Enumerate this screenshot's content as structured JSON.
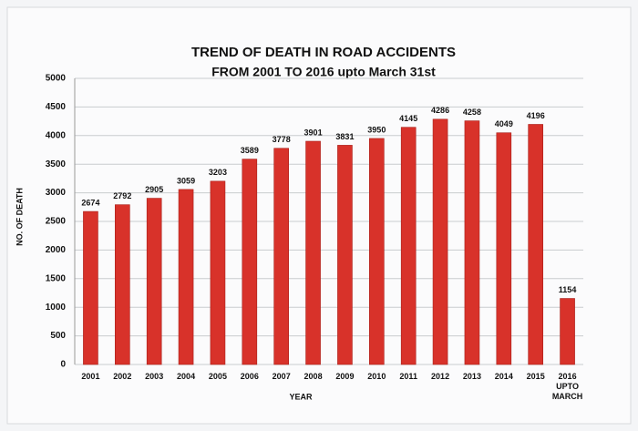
{
  "chart_data": {
    "type": "bar",
    "title": "TREND OF DEATH IN ROAD ACCIDENTS",
    "subtitle": "FROM 2001 TO  2016 upto  March 31st",
    "y_label": "NO. OF DEATH",
    "x_label": "YEAR",
    "categories": [
      "2001",
      "2002",
      "2003",
      "2004",
      "2005",
      "2006",
      "2007",
      "2008",
      "2009",
      "2010",
      "2011",
      "2012",
      "2013",
      "2014",
      "2015",
      "2016 UPTO MARCH"
    ],
    "values": [
      2674,
      2792,
      2905,
      3059,
      3203,
      3589,
      3778,
      3901,
      3831,
      3950,
      4145,
      4286,
      4258,
      4049,
      4196,
      1154
    ],
    "color": "#d8322a",
    "ylim": [
      0,
      5000
    ],
    "yticks": [
      0,
      500,
      1000,
      1500,
      2000,
      2500,
      3000,
      3500,
      4000,
      4500,
      5000
    ],
    "grid": true
  }
}
